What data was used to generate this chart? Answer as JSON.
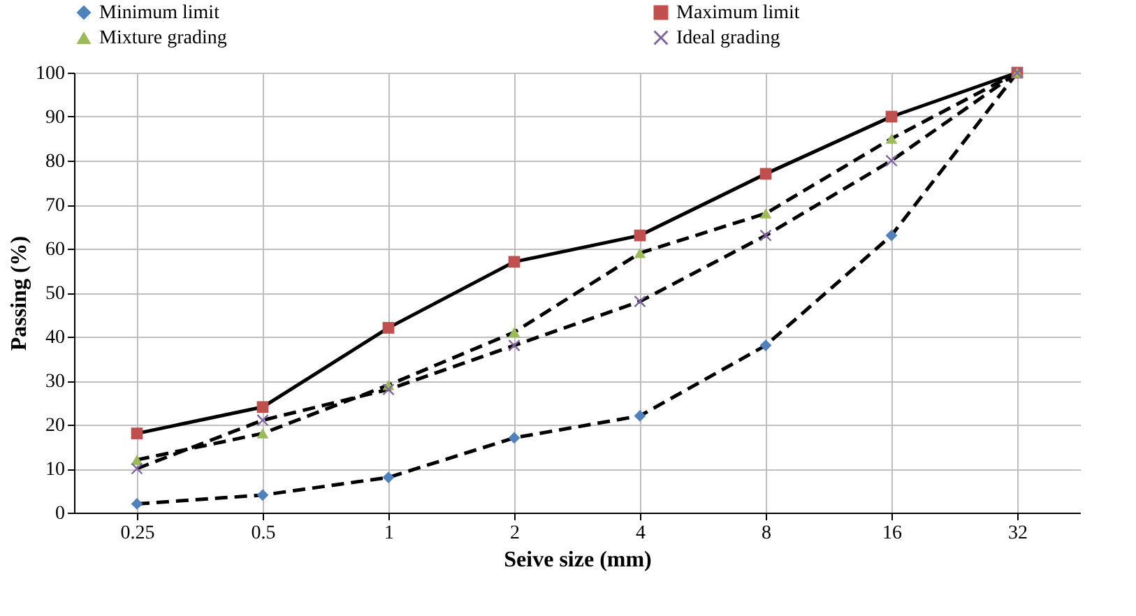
{
  "chart_data": {
    "type": "line",
    "xlabel": "Seive size (mm)",
    "ylabel": "Passing (%)",
    "categories": [
      "0.25",
      "0.5",
      "1",
      "2",
      "4",
      "8",
      "16",
      "32"
    ],
    "ylim": [
      0,
      100
    ],
    "yticks": [
      0,
      10,
      20,
      30,
      40,
      50,
      60,
      70,
      80,
      90,
      100
    ],
    "grid": true,
    "legend": "top",
    "series": [
      {
        "name": "Minimum limit",
        "color": "#4f81bd",
        "marker": "diamond",
        "line_style": "dashed",
        "values": [
          2,
          4,
          8,
          17,
          22,
          38,
          63,
          100
        ]
      },
      {
        "name": "Maximum limit",
        "color": "#c0504d",
        "marker": "square",
        "line_style": "solid",
        "values": [
          18,
          24,
          42,
          57,
          63,
          77,
          90,
          100
        ]
      },
      {
        "name": "Mixture  grading",
        "color": "#9bbb59",
        "marker": "triangle",
        "line_style": "dashed",
        "values": [
          12,
          18,
          29,
          41,
          59,
          68,
          85,
          100
        ]
      },
      {
        "name": "Ideal  grading",
        "color": "#8064a2",
        "marker": "cross",
        "line_style": "dashed",
        "values": [
          10,
          21,
          28,
          38,
          48,
          63,
          80,
          100
        ]
      }
    ]
  }
}
